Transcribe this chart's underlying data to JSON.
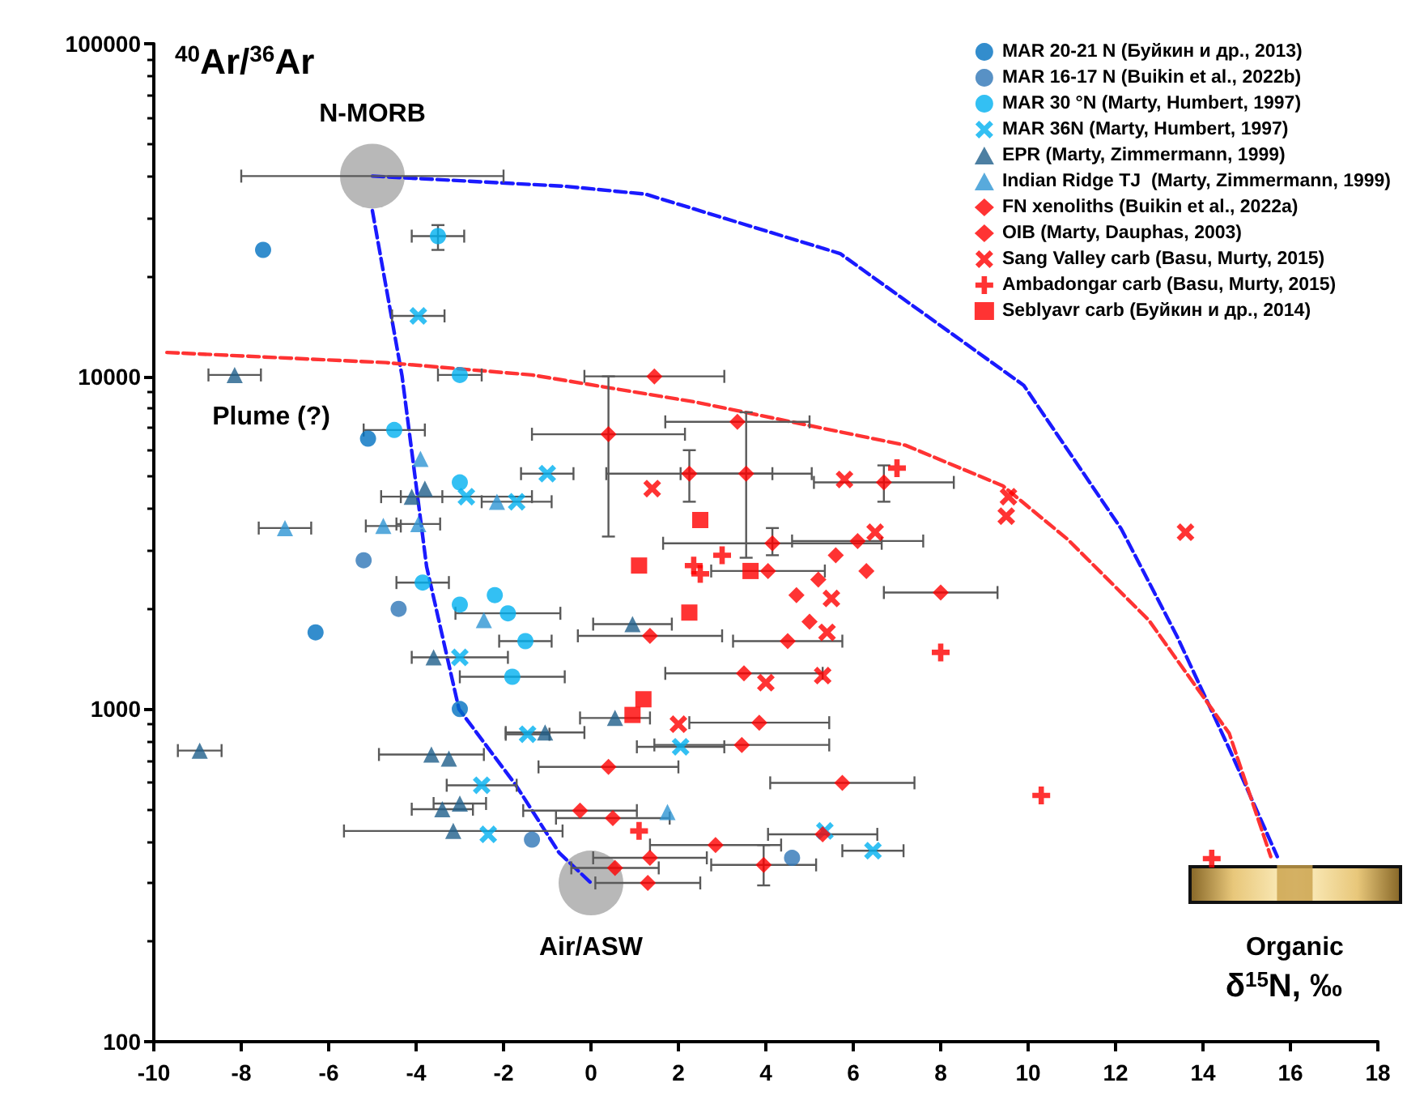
{
  "chart_data": {
    "type": "scatter",
    "xlabel": "δ$^{15}$N, ‰",
    "ylabel": "$^{40}$Ar/$^{36}$Ar",
    "xlim": [
      -10,
      18
    ],
    "xticks": [
      -10,
      -8,
      -6,
      -4,
      -2,
      0,
      2,
      4,
      6,
      8,
      10,
      12,
      14,
      16,
      18
    ],
    "ylim": [
      100,
      100000
    ],
    "yticks": [
      100,
      1000,
      10000,
      100000
    ],
    "log": "y",
    "legend": "top right",
    "annotations": [
      {
        "text": "N-MORB",
        "x": -5,
        "y": 40000
      },
      {
        "text": "Air/ASW",
        "x": 0,
        "y": 300
      },
      {
        "text": "Organic",
        "x": 16.1,
        "y": 300
      },
      {
        "text": "Plume (?)",
        "x": -9.7,
        "y": 11800
      }
    ],
    "series": [
      {
        "type": "line",
        "color": "#1a1aff",
        "line_style": "dashed",
        "marker": "none",
        "x": [
          -5,
          -4.32,
          -3.76,
          -3.02,
          -1.72,
          -0.73,
          0
        ],
        "values": [
          31500,
          10000,
          2680,
          1000,
          591,
          370,
          300
        ]
      },
      {
        "type": "line",
        "color": "#1a1aff",
        "line_style": "dashed",
        "marker": "none",
        "x": [
          -5,
          -0.6,
          1.25,
          5.7,
          9.9,
          12.13,
          13.4,
          14.6,
          15.7
        ],
        "values": [
          40000,
          37300,
          35300,
          23400,
          9400,
          3480,
          1660,
          760,
          360
        ]
      },
      {
        "type": "line",
        "color": "#ff3333",
        "line_style": "dashed",
        "marker": "none",
        "x": [
          -9.7,
          -4.69,
          -1.35,
          2.37,
          7.19,
          9.42,
          10.9,
          12.76,
          14.6,
          15.55
        ],
        "values": [
          11800,
          11000,
          10100,
          8380,
          6210,
          4690,
          3240,
          1850,
          845,
          360
        ]
      },
      {
        "type": "scatter",
        "marker": "circle",
        "color": "#a6a6a6",
        "x": [
          -5,
          0
        ],
        "values": [
          40000,
          300
        ],
        "xerrors": [
          3,
          null
        ]
      },
      {
        "type": "scatter",
        "marker": "square",
        "color": "#c9a04a",
        "x": [
          16.1
        ],
        "values": [
          300
        ]
      },
      {
        "name": "MAR 20-21 N (Буйкин и др., 2013)",
        "marker": "circle",
        "color": "#0070c0",
        "x": [
          -7.5,
          -5.1,
          -6.3,
          -3
        ],
        "values": [
          24000,
          6500,
          1700,
          1000
        ]
      },
      {
        "name": "MAR 16-17 N (Buikin et al., 2022b)",
        "marker": "circle",
        "color": "#2e75b6",
        "x": [
          -5.2,
          -4.4,
          -1.35,
          4.6
        ],
        "values": [
          2800,
          2000,
          405,
          357
        ]
      },
      {
        "name": "MAR 30 °N (Marty, Humbert, 1997)",
        "marker": "circle",
        "color": "#00b0f0",
        "x": [
          -3.5,
          -3,
          -4.5,
          -3,
          -3.85,
          -3,
          -2.2,
          -1.9,
          -1.5,
          -1.8
        ],
        "values": [
          26400,
          10100,
          6900,
          4800,
          2400,
          2060,
          2200,
          1940,
          1600,
          1250
        ],
        "xerrors": [
          0.6,
          0.5,
          0.7,
          null,
          0.6,
          null,
          null,
          1.2,
          0.6,
          1.2
        ],
        "errors": [
          [
            24000,
            28500
          ],
          null,
          null,
          null,
          null,
          null,
          null,
          null,
          null,
          null
        ]
      },
      {
        "name": "MAR 36N (Marty, Humbert, 1997)",
        "marker": "x",
        "color": "#00b0f0",
        "x": [
          -3.95,
          -1,
          -2.85,
          -1.7,
          -3,
          -1.45,
          -2.5,
          -2.35,
          2.05,
          5.35,
          6.45
        ],
        "values": [
          15200,
          5100,
          4350,
          4200,
          1430,
          840,
          590,
          420,
          770,
          430,
          375
        ],
        "xerrors": [
          0.6,
          0.6,
          1.5,
          0.8,
          1.1,
          0.5,
          0.8,
          null,
          1,
          null,
          0.7
        ]
      },
      {
        "name": "EPR (Marty, Zimmermann, 1999)",
        "marker": "triangle",
        "color": "#1f5f8b",
        "x": [
          -8.15,
          -3.8,
          -4.1,
          -3.6,
          -8.95,
          -3.65,
          -3.25,
          -1.05,
          -3.4,
          -3,
          -3.15,
          0.55,
          0.95
        ],
        "values": [
          10100,
          4600,
          4350,
          1430,
          750,
          730,
          710,
          850,
          500,
          520,
          430,
          940,
          1800
        ],
        "xerrors": [
          0.6,
          null,
          0.7,
          null,
          0.5,
          1.2,
          null,
          0.9,
          0.7,
          0.6,
          2.5,
          0.8,
          0.9
        ]
      },
      {
        "name": "Indian Ridge TJ  (Marty, Zimmermann, 1999)",
        "marker": "triangle",
        "color": "#2e95d3",
        "x": [
          -7,
          -4.75,
          -3.95,
          -3.9,
          -2.15,
          -2.45,
          1.75
        ],
        "values": [
          3500,
          3550,
          3600,
          5650,
          4200,
          1850,
          490
        ],
        "xerrors": [
          0.6,
          0.4,
          0.5,
          null,
          null,
          null,
          null
        ]
      },
      {
        "name": "FN xenoliths (Buikin et al., 2022a)",
        "marker": "diamond",
        "color": "#ff0000",
        "x": [
          4.7,
          5.2,
          5.6,
          5,
          6.3
        ],
        "values": [
          2200,
          2450,
          2900,
          1830,
          2600
        ]
      },
      {
        "name": "OIB (Marty, Dauphas, 2003)",
        "marker": "diamond",
        "color": "#ff0000",
        "x": [
          1.45,
          0.4,
          3.35,
          2.25,
          3.55,
          6.7,
          4.15,
          4.05,
          6.1,
          8,
          1.35,
          4.5,
          3.5,
          3.85,
          3.45,
          0.4,
          5.75,
          -0.25,
          0.5,
          5.3,
          2.85,
          1.35,
          0.55,
          1.3,
          3.95
        ],
        "values": [
          10000,
          6700,
          7300,
          5100,
          5100,
          4800,
          3150,
          2600,
          3200,
          2240,
          1660,
          1600,
          1280,
          910,
          780,
          670,
          600,
          495,
          470,
          420,
          390,
          357,
          333,
          300,
          340
        ],
        "xerrors": [
          1.6,
          1.75,
          1.65,
          1.9,
          1.5,
          1.6,
          2.5,
          1.3,
          1.5,
          1.3,
          1.65,
          1.25,
          1.8,
          1.6,
          2,
          1.6,
          1.65,
          1.3,
          1.3,
          1.25,
          1.5,
          1.3,
          1,
          1.2,
          1.2
        ],
        "errors": [
          null,
          [
            3300,
            10000
          ],
          null,
          [
            4200,
            6000
          ],
          [
            2850,
            7800
          ],
          [
            4200,
            5400
          ],
          [
            2900,
            3500
          ],
          null,
          null,
          null,
          null,
          null,
          null,
          null,
          null,
          null,
          null,
          null,
          null,
          null,
          null,
          null,
          null,
          null,
          [
            295,
            390
          ]
        ]
      },
      {
        "name": "Sang Valley carb (Basu, Murty, 2015)",
        "marker": "x",
        "color": "#ff0000",
        "x": [
          1.4,
          5.8,
          6.5,
          5.5,
          5.4,
          9.55,
          9.5,
          13.6,
          4,
          5.3,
          2
        ],
        "values": [
          4600,
          4900,
          3400,
          2150,
          1700,
          4350,
          3800,
          3400,
          1200,
          1260,
          900
        ]
      },
      {
        "name": "Ambadongar carb (Basu, Murty, 2015)",
        "marker": "cross",
        "color": "#ff0000",
        "x": [
          7,
          2.35,
          3,
          2.5,
          8,
          1.1,
          10.3,
          14.2
        ],
        "values": [
          5300,
          2700,
          2900,
          2550,
          1480,
          430,
          550,
          355
        ]
      },
      {
        "name": "Seblyavr carb (Буйкин и др., 2014)",
        "marker": "square",
        "color": "#ff0000",
        "x": [
          2.5,
          1.1,
          3.65,
          2.25,
          1.2,
          0.95
        ],
        "values": [
          3700,
          2700,
          2600,
          1950,
          1070,
          960
        ]
      }
    ]
  }
}
